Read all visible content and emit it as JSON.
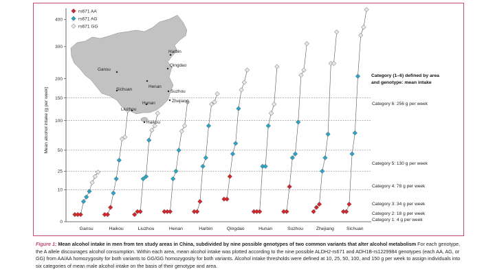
{
  "colors": {
    "frame": "#c0476e",
    "AA": "#d7262b",
    "AG": "#2aa6c8",
    "GG": "#e6e6e6",
    "map_land": "#c2c2c2"
  },
  "caption": {
    "figure_label": "Figure 1:",
    "title": "Mean alcohol intake in men from ten study areas in China, subdivided by nine possible genotypes of two common variants that alter alcohol metabolism",
    "body": "For each genotype, the A allele discourages alcohol consumption. Within each area, mean alcohol intake was plotted according to the nine possible ALDH2-rs671 and ADH1B-rs1229984 genotypes (each AA, AG, or GG) from AA/AA homozygosity for both variants to GG/GG homozygosity for both variants. Alcohol intake thresholds were defined at 10, 25, 50, 100, and 150 g per week to assign individuals into six categories of mean male alcohol intake on the basis of their genotype and area."
  },
  "map": {
    "icon": "china-map",
    "cities": [
      "Gansu",
      "Harbin",
      "Qingdao",
      "Henan",
      "Sichuan",
      "Suzhou",
      "Zhejiang",
      "Hunan",
      "Liuzhou",
      "Haikou"
    ]
  },
  "category_header": "Category (1–6) defined by area and genotype: mean intake",
  "category_labels": [
    {
      "category": 1,
      "text": "Category 1: 4 g per week",
      "value": 4
    },
    {
      "category": 2,
      "text": "Category 2: 18 g per week",
      "value": 18
    },
    {
      "category": 3,
      "text": "Category 3: 34 g per week",
      "value": 34
    },
    {
      "category": 4,
      "text": "Category 4: 78 g per week",
      "value": 78
    },
    {
      "category": 5,
      "text": "Category 5: 130 g per week",
      "value": 130
    },
    {
      "category": 6,
      "text": "Category 6: 256 g per week",
      "value": 256
    }
  ],
  "chart_data": {
    "type": "scatter",
    "ylabel": "Mean alcohol intake (g per week)",
    "y_scale": "sqrt",
    "ylim": [
      0,
      440
    ],
    "yticks": [
      0,
      10,
      25,
      50,
      100,
      150,
      200,
      300,
      400
    ],
    "threshold_lines": [
      10,
      25,
      50,
      100,
      150
    ],
    "legend": [
      "rs671 AA",
      "rs671 AG",
      "rs671 GG"
    ],
    "legend_position": "top-left",
    "areas": [
      "Gansu",
      "Haikou",
      "Liuzhou",
      "Henan",
      "Harbin",
      "Qingdao",
      "Hunan",
      "Suzhou",
      "Zhejiang",
      "Sichuan"
    ],
    "series": [
      {
        "area": "Gansu",
        "AA": [
          0.5,
          0.5,
          0.5
        ],
        "AG": [
          4,
          6,
          9
        ],
        "GG": [
          15,
          20,
          24
        ]
      },
      {
        "area": "Haikou",
        "AA": [
          0.5,
          0.5,
          2
        ],
        "AG": [
          8,
          18,
          37
        ],
        "GG": [
          67,
          70,
          121
        ]
      },
      {
        "area": "Liuzhou",
        "AA": [
          0.5,
          1,
          1
        ],
        "AG": [
          18,
          20,
          65
        ],
        "GG": [
          82,
          90,
          115
        ]
      },
      {
        "area": "Henan",
        "AA": [
          1,
          1,
          1
        ],
        "AG": [
          18,
          25,
          50
        ],
        "GG": [
          80,
          90,
          140
        ]
      },
      {
        "area": "Harbin",
        "AA": [
          1,
          1,
          4
        ],
        "AG": [
          30,
          40,
          90
        ],
        "GG": [
          135,
          140,
          160
        ]
      },
      {
        "area": "Qingdao",
        "AA": [
          5,
          5,
          20
        ],
        "AG": [
          45,
          60,
          125
        ],
        "GG": [
          170,
          190,
          225
        ]
      },
      {
        "area": "Hunan",
        "AA": [
          1,
          1,
          1
        ],
        "AG": [
          30,
          30,
          90
        ],
        "GG": [
          115,
          135,
          235
        ]
      },
      {
        "area": "Suzhou",
        "AA": [
          1,
          1,
          12
        ],
        "AG": [
          40,
          45,
          97
        ],
        "GG": [
          210,
          225,
          310
        ]
      },
      {
        "area": "Zhejiang",
        "AA": [
          1,
          2,
          3
        ],
        "AG": [
          25,
          40,
          75
        ],
        "GG": [
          245,
          245,
          352
        ]
      },
      {
        "area": "Sichuan",
        "AA": [
          1,
          1,
          3
        ],
        "AG": [
          45,
          77,
          207
        ],
        "GG": [
          340,
          370,
          440
        ]
      }
    ]
  }
}
